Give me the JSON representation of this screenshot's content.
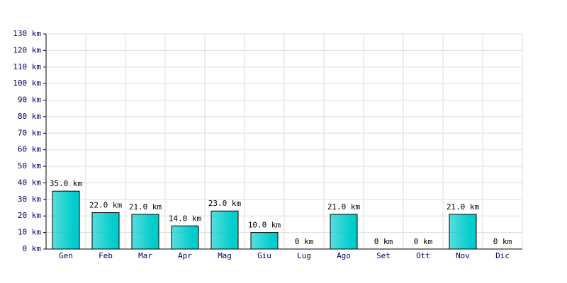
{
  "chart_data": {
    "type": "bar",
    "categories": [
      "Gen",
      "Feb",
      "Mar",
      "Apr",
      "Mag",
      "Giu",
      "Lug",
      "Ago",
      "Set",
      "Ott",
      "Nov",
      "Dic"
    ],
    "values": [
      35,
      22,
      21,
      14,
      23,
      10,
      0,
      21,
      0,
      0,
      21,
      0
    ],
    "value_labels": [
      "35.0 km",
      "22.0 km",
      "21.0 km",
      "14.0 km",
      "23.0 km",
      "10.0 km",
      "0 km",
      "21.0 km",
      "0 km",
      "0 km",
      "21.0 km",
      "0 km"
    ],
    "color": "#00cccc",
    "ylim": [
      0,
      130
    ],
    "yticks": [
      {
        "value": 0,
        "label": "0 km"
      },
      {
        "value": 10,
        "label": "10 km"
      },
      {
        "value": 20,
        "label": "20 km"
      },
      {
        "value": 30,
        "label": "30 km"
      },
      {
        "value": 40,
        "label": "40 km"
      },
      {
        "value": 50,
        "label": "50 km"
      },
      {
        "value": 60,
        "label": "60 km"
      },
      {
        "value": 70,
        "label": "70 km"
      },
      {
        "value": 80,
        "label": "80 km"
      },
      {
        "value": 90,
        "label": "90 km"
      },
      {
        "value": 100,
        "label": "100 km"
      },
      {
        "value": 110,
        "label": "110 km"
      },
      {
        "value": 120,
        "label": "120 km"
      },
      {
        "value": 130,
        "label": "130 km"
      }
    ],
    "grid": true
  }
}
